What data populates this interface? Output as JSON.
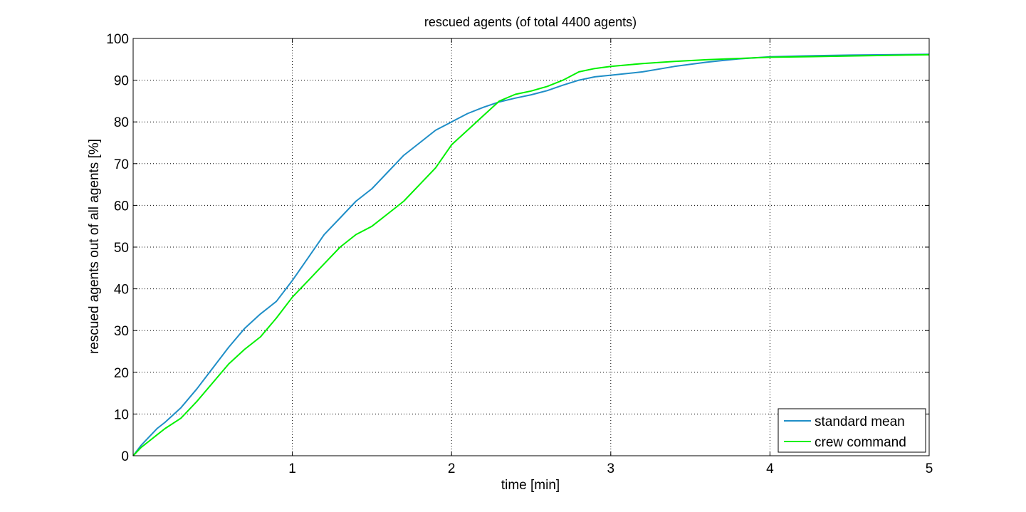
{
  "chart_data": {
    "type": "line",
    "title": "rescued agents (of total 4400 agents)",
    "xlabel": "time [min]",
    "ylabel": "rescued agents out of all agents [%]",
    "xlim": [
      0,
      5
    ],
    "ylim": [
      0,
      100
    ],
    "xticks": [
      1,
      2,
      3,
      4,
      5
    ],
    "xtick_labels": [
      "1",
      "2",
      "3",
      "4",
      "5"
    ],
    "yticks": [
      0,
      10,
      20,
      30,
      40,
      50,
      60,
      70,
      80,
      90,
      100
    ],
    "ytick_labels": [
      "0",
      "10",
      "20",
      "30",
      "40",
      "50",
      "60",
      "70",
      "80",
      "90",
      "100"
    ],
    "grid": true,
    "legend_position": "bottom-right",
    "series": [
      {
        "name": "standard mean",
        "color": "#1f8ec7",
        "x": [
          0,
          0.05,
          0.1,
          0.15,
          0.2,
          0.3,
          0.4,
          0.5,
          0.6,
          0.7,
          0.8,
          0.9,
          1.0,
          1.1,
          1.2,
          1.3,
          1.4,
          1.5,
          1.6,
          1.7,
          1.8,
          1.9,
          2.0,
          2.1,
          2.2,
          2.3,
          2.4,
          2.5,
          2.6,
          2.7,
          2.8,
          2.9,
          3.0,
          3.2,
          3.4,
          3.6,
          3.8,
          4.0,
          4.2,
          4.5,
          5.0
        ],
        "y": [
          0,
          2.5,
          4.5,
          6.5,
          8,
          11.5,
          16,
          21,
          26,
          30.5,
          34,
          37,
          42,
          47.5,
          53,
          57,
          61,
          64,
          68,
          72,
          75,
          78,
          80,
          82,
          83.5,
          84.8,
          85.7,
          86.5,
          87.5,
          88.8,
          90,
          90.8,
          91.2,
          92,
          93.3,
          94.3,
          95.1,
          95.6,
          95.8,
          96,
          96.2
        ]
      },
      {
        "name": "crew command",
        "color": "#00f000",
        "x": [
          0,
          0.05,
          0.1,
          0.15,
          0.2,
          0.3,
          0.4,
          0.5,
          0.6,
          0.7,
          0.8,
          0.9,
          1.0,
          1.1,
          1.2,
          1.3,
          1.4,
          1.5,
          1.6,
          1.7,
          1.8,
          1.9,
          2.0,
          2.1,
          2.2,
          2.3,
          2.4,
          2.5,
          2.6,
          2.7,
          2.8,
          2.9,
          3.0,
          3.2,
          3.4,
          3.6,
          3.8,
          4.0,
          4.2,
          4.5,
          5.0
        ],
        "y": [
          0,
          2,
          3.5,
          5,
          6.5,
          9,
          13,
          17.5,
          22,
          25.5,
          28.5,
          33,
          38,
          42,
          46,
          50,
          53,
          55,
          58,
          61,
          65,
          69,
          74.5,
          78,
          81.5,
          85,
          86.6,
          87.4,
          88.5,
          90,
          92,
          92.8,
          93.3,
          94,
          94.5,
          94.9,
          95.2,
          95.5,
          95.6,
          95.8,
          96.1
        ]
      }
    ]
  }
}
